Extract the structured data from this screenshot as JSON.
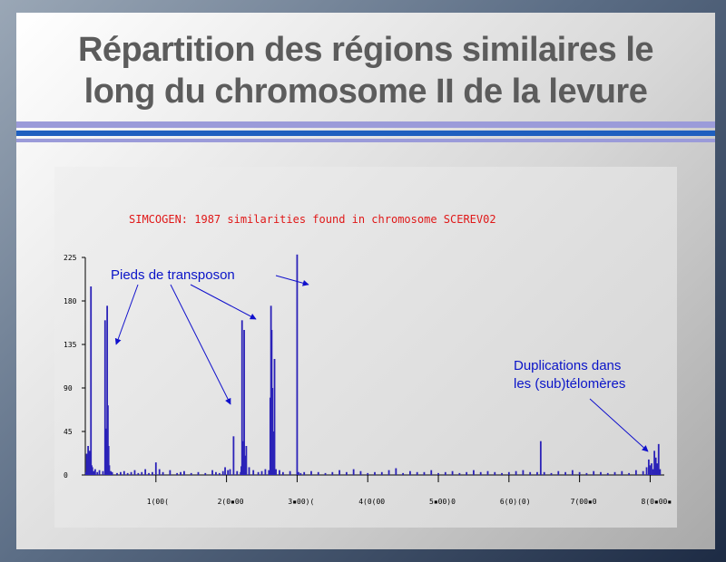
{
  "slide": {
    "title_line1": "Répartition des régions similaires le",
    "title_line2": "long du chromosome II de la levure"
  },
  "chart_data": {
    "type": "bar",
    "title": "SIMCOGEN: 1987 similarities found in chromosome SCEREV02",
    "xlabel": "",
    "ylabel": "",
    "ylim": [
      0,
      225
    ],
    "xlim": [
      0,
      820000
    ],
    "yticks": [
      "0",
      "45",
      "90",
      "135",
      "180",
      "225"
    ],
    "xticks": [
      {
        "v": 100000,
        "label": "1(00("
      },
      {
        "v": 200000,
        "label": "2(0▪00"
      },
      {
        "v": 300000,
        "label": "3▪00)("
      },
      {
        "v": 400000,
        "label": "4(0(00"
      },
      {
        "v": 500000,
        "label": "5▪00)0"
      },
      {
        "v": 600000,
        "label": "6(0)(0)"
      },
      {
        "v": 700000,
        "label": "7(00▪0"
      },
      {
        "v": 800000,
        "label": "8(0▪00▪"
      }
    ],
    "color": "#2b22b8",
    "x": [
      1000,
      2000,
      3000,
      4000,
      5000,
      6000,
      7000,
      8000,
      9000,
      10000,
      12000,
      14000,
      17000,
      20000,
      25000,
      28000,
      30000,
      31000,
      32000,
      33000,
      34000,
      36000,
      38000,
      45000,
      50000,
      55000,
      60000,
      65000,
      70000,
      75000,
      80000,
      85000,
      90000,
      95000,
      100000,
      105000,
      110000,
      120000,
      130000,
      135000,
      140000,
      150000,
      160000,
      170000,
      180000,
      185000,
      190000,
      195000,
      198000,
      202000,
      205000,
      210000,
      215000,
      220000,
      221000,
      222000,
      223000,
      224000,
      225000,
      226000,
      228000,
      232000,
      238000,
      245000,
      250000,
      255000,
      260000,
      262000,
      263000,
      264000,
      265000,
      266000,
      267000,
      268000,
      270000,
      275000,
      280000,
      290000,
      300000,
      302000,
      305000,
      310000,
      320000,
      330000,
      340000,
      350000,
      360000,
      370000,
      380000,
      390000,
      400000,
      410000,
      420000,
      430000,
      440000,
      450000,
      460000,
      470000,
      480000,
      490000,
      500000,
      510000,
      520000,
      530000,
      540000,
      550000,
      560000,
      570000,
      580000,
      590000,
      600000,
      610000,
      620000,
      630000,
      640000,
      645000,
      650000,
      660000,
      670000,
      680000,
      690000,
      700000,
      710000,
      720000,
      730000,
      740000,
      750000,
      760000,
      770000,
      780000,
      790000,
      795000,
      798000,
      800000,
      802000,
      804000,
      806000,
      808000,
      810000,
      812000,
      814000
    ],
    "values": [
      3,
      22,
      15,
      30,
      18,
      25,
      5,
      195,
      10,
      8,
      4,
      6,
      3,
      5,
      4,
      160,
      48,
      175,
      72,
      30,
      10,
      4,
      3,
      2,
      3,
      4,
      2,
      3,
      5,
      2,
      3,
      6,
      2,
      3,
      13,
      6,
      3,
      5,
      2,
      3,
      4,
      2,
      3,
      2,
      5,
      3,
      2,
      4,
      8,
      5,
      6,
      40,
      4,
      3,
      9,
      160,
      15,
      35,
      150,
      20,
      30,
      8,
      5,
      3,
      4,
      6,
      5,
      80,
      175,
      150,
      90,
      30,
      45,
      120,
      6,
      5,
      3,
      4,
      228,
      3,
      2,
      3,
      4,
      3,
      2,
      3,
      5,
      3,
      6,
      4,
      2,
      3,
      3,
      5,
      7,
      2,
      4,
      3,
      3,
      5,
      2,
      3,
      4,
      2,
      3,
      5,
      3,
      4,
      3,
      2,
      3,
      4,
      5,
      3,
      3,
      35,
      3,
      2,
      4,
      3,
      5,
      3,
      2,
      4,
      3,
      2,
      3,
      4,
      2,
      5,
      4,
      8,
      16,
      10,
      12,
      6,
      25,
      18,
      12,
      32,
      6
    ],
    "annotations": [
      {
        "text": "Pieds de transposon"
      },
      {
        "text": "Duplications dans"
      },
      {
        "text": "les (sub)télomères"
      }
    ]
  }
}
